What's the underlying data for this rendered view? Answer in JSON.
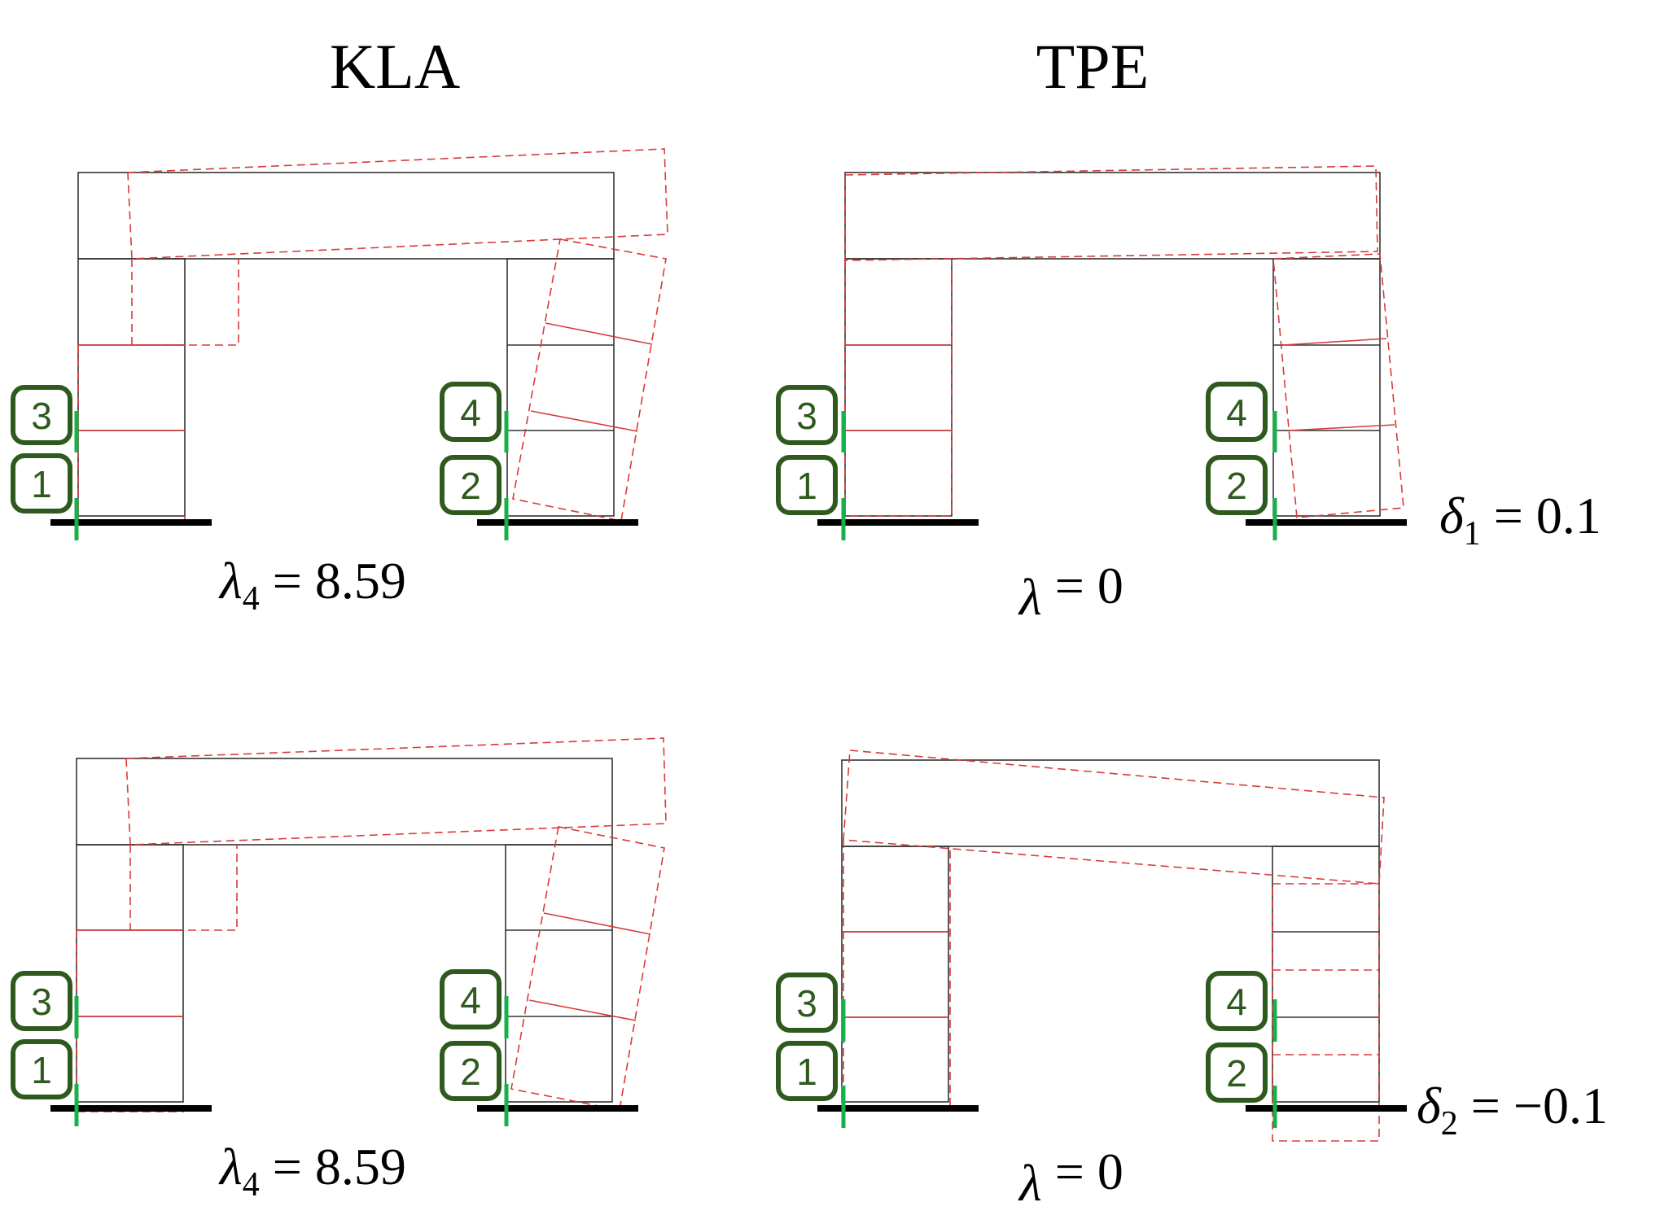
{
  "titles": {
    "left": "KLA",
    "right": "TPE"
  },
  "panels": [
    {
      "id": "kla-top",
      "lambda": {
        "symbol": "λ",
        "sub": "4",
        "eq": " = 8.59"
      }
    },
    {
      "id": "tpe-top",
      "lambda": {
        "symbol": "λ",
        "sub": "",
        "eq": " = 0"
      },
      "delta": {
        "symbol": "δ",
        "sub": "1",
        "eq": " = 0.1"
      }
    },
    {
      "id": "kla-bottom",
      "lambda": {
        "symbol": "λ",
        "sub": "4",
        "eq": " = 8.59"
      }
    },
    {
      "id": "tpe-bottom",
      "lambda": {
        "symbol": "λ",
        "sub": "",
        "eq": " = 0"
      },
      "delta": {
        "symbol": "δ",
        "sub": "2",
        "eq": " = −0.1"
      }
    }
  ],
  "labels": {
    "n1": "1",
    "n2": "2",
    "n3": "3",
    "n4": "4"
  },
  "colors": {
    "outline": "#333333",
    "deformed": "#d93a3a",
    "marker": "#18b04a",
    "badge": "#2e5a1e"
  }
}
